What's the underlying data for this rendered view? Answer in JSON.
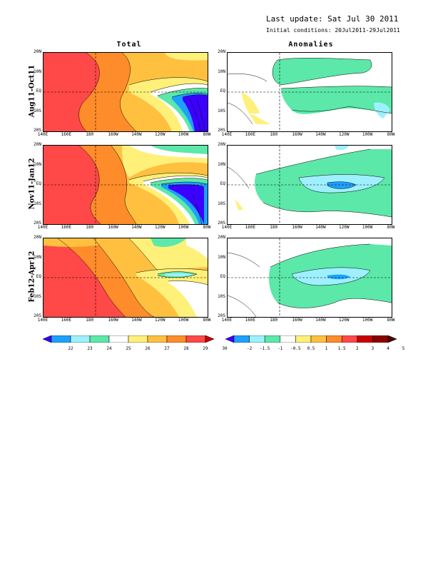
{
  "header": {
    "last_update": "Last update: Sat Jul 30 2011",
    "initial_conditions": "Initial conditions: 20Jul2011-29Jul2011"
  },
  "columns": {
    "total": "Total",
    "anomalies": "Anomalies"
  },
  "rows": [
    "Aug11-Oct11",
    "Nov11-Jan12",
    "Feb12-Apr12"
  ],
  "axes": {
    "lat_ticks": [
      "20N",
      "10N",
      "EQ",
      "10S",
      "20S"
    ],
    "lon_ticks": [
      "140E",
      "160E",
      "180",
      "160W",
      "140W",
      "120W",
      "100W",
      "80W"
    ]
  },
  "colorbar_total": {
    "labels": [
      "22",
      "23",
      "24",
      "25",
      "26",
      "27",
      "28",
      "29",
      "30"
    ],
    "colors": [
      "#3c00ff",
      "#1ea0ff",
      "#9ef0ff",
      "#5ce8a8",
      "#ffffff",
      "#fff07a",
      "#ffc040",
      "#ff8c2a",
      "#ff4848",
      "#c80000"
    ]
  },
  "colorbar_anom": {
    "labels": [
      "-2",
      "-1.5",
      "-1",
      "-0.5",
      "0.5",
      "1",
      "1.5",
      "2",
      "3",
      "4",
      "5"
    ],
    "colors": [
      "#3c00ff",
      "#1ea0ff",
      "#9ef0ff",
      "#5ce8a8",
      "#ffffff",
      "#fff07a",
      "#ffc040",
      "#ff8c2a",
      "#ff4848",
      "#c80000",
      "#8b0000",
      "#4a0000"
    ]
  }
}
